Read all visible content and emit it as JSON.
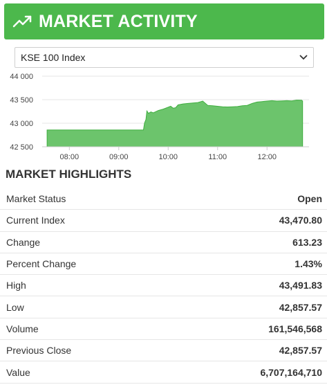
{
  "header": {
    "title": "MARKET ACTIVITY",
    "icon": "trending-up-icon",
    "bg_color": "#4cb84c"
  },
  "index_select": {
    "selected": "KSE 100 Index"
  },
  "chart_data": {
    "type": "area",
    "color": "#6cc46c",
    "ylim": [
      42500,
      44000
    ],
    "y_ticks": [
      "42 500",
      "43 000",
      "43 500",
      "44 000"
    ],
    "y_tick_values": [
      42500,
      43000,
      43500,
      44000
    ],
    "x_ticks": [
      "08:00",
      "09:00",
      "10:00",
      "11:00",
      "12:00"
    ],
    "x_tick_hours": [
      8,
      9,
      10,
      11,
      12
    ],
    "points": [
      [
        7.55,
        42857
      ],
      [
        9.5,
        42857
      ],
      [
        9.52,
        43000
      ],
      [
        9.55,
        43080
      ],
      [
        9.57,
        43260
      ],
      [
        9.6,
        43210
      ],
      [
        9.65,
        43240
      ],
      [
        9.7,
        43220
      ],
      [
        9.8,
        43270
      ],
      [
        9.9,
        43300
      ],
      [
        10.0,
        43340
      ],
      [
        10.05,
        43360
      ],
      [
        10.1,
        43320
      ],
      [
        10.15,
        43330
      ],
      [
        10.2,
        43390
      ],
      [
        10.3,
        43410
      ],
      [
        10.4,
        43420
      ],
      [
        10.5,
        43430
      ],
      [
        10.6,
        43440
      ],
      [
        10.7,
        43470
      ],
      [
        10.8,
        43380
      ],
      [
        10.9,
        43370
      ],
      [
        11.0,
        43360
      ],
      [
        11.1,
        43350
      ],
      [
        11.2,
        43345
      ],
      [
        11.3,
        43350
      ],
      [
        11.4,
        43355
      ],
      [
        11.5,
        43370
      ],
      [
        11.6,
        43380
      ],
      [
        11.7,
        43420
      ],
      [
        11.8,
        43450
      ],
      [
        11.9,
        43460
      ],
      [
        12.0,
        43470
      ],
      [
        12.1,
        43480
      ],
      [
        12.2,
        43470
      ],
      [
        12.3,
        43475
      ],
      [
        12.4,
        43480
      ],
      [
        12.5,
        43475
      ],
      [
        12.6,
        43491
      ],
      [
        12.7,
        43490
      ],
      [
        12.72,
        43471
      ]
    ]
  },
  "highlights": {
    "title": "MARKET HIGHLIGHTS",
    "rows": [
      {
        "label": "Market Status",
        "value": "Open"
      },
      {
        "label": "Current Index",
        "value": "43,470.80"
      },
      {
        "label": "Change",
        "value": "613.23"
      },
      {
        "label": "Percent Change",
        "value": "1.43%"
      },
      {
        "label": "High",
        "value": "43,491.83"
      },
      {
        "label": "Low",
        "value": "42,857.57"
      },
      {
        "label": "Volume",
        "value": "161,546,568"
      },
      {
        "label": "Previous Close",
        "value": "42,857.57"
      },
      {
        "label": "Value",
        "value": "6,707,164,710"
      }
    ]
  }
}
